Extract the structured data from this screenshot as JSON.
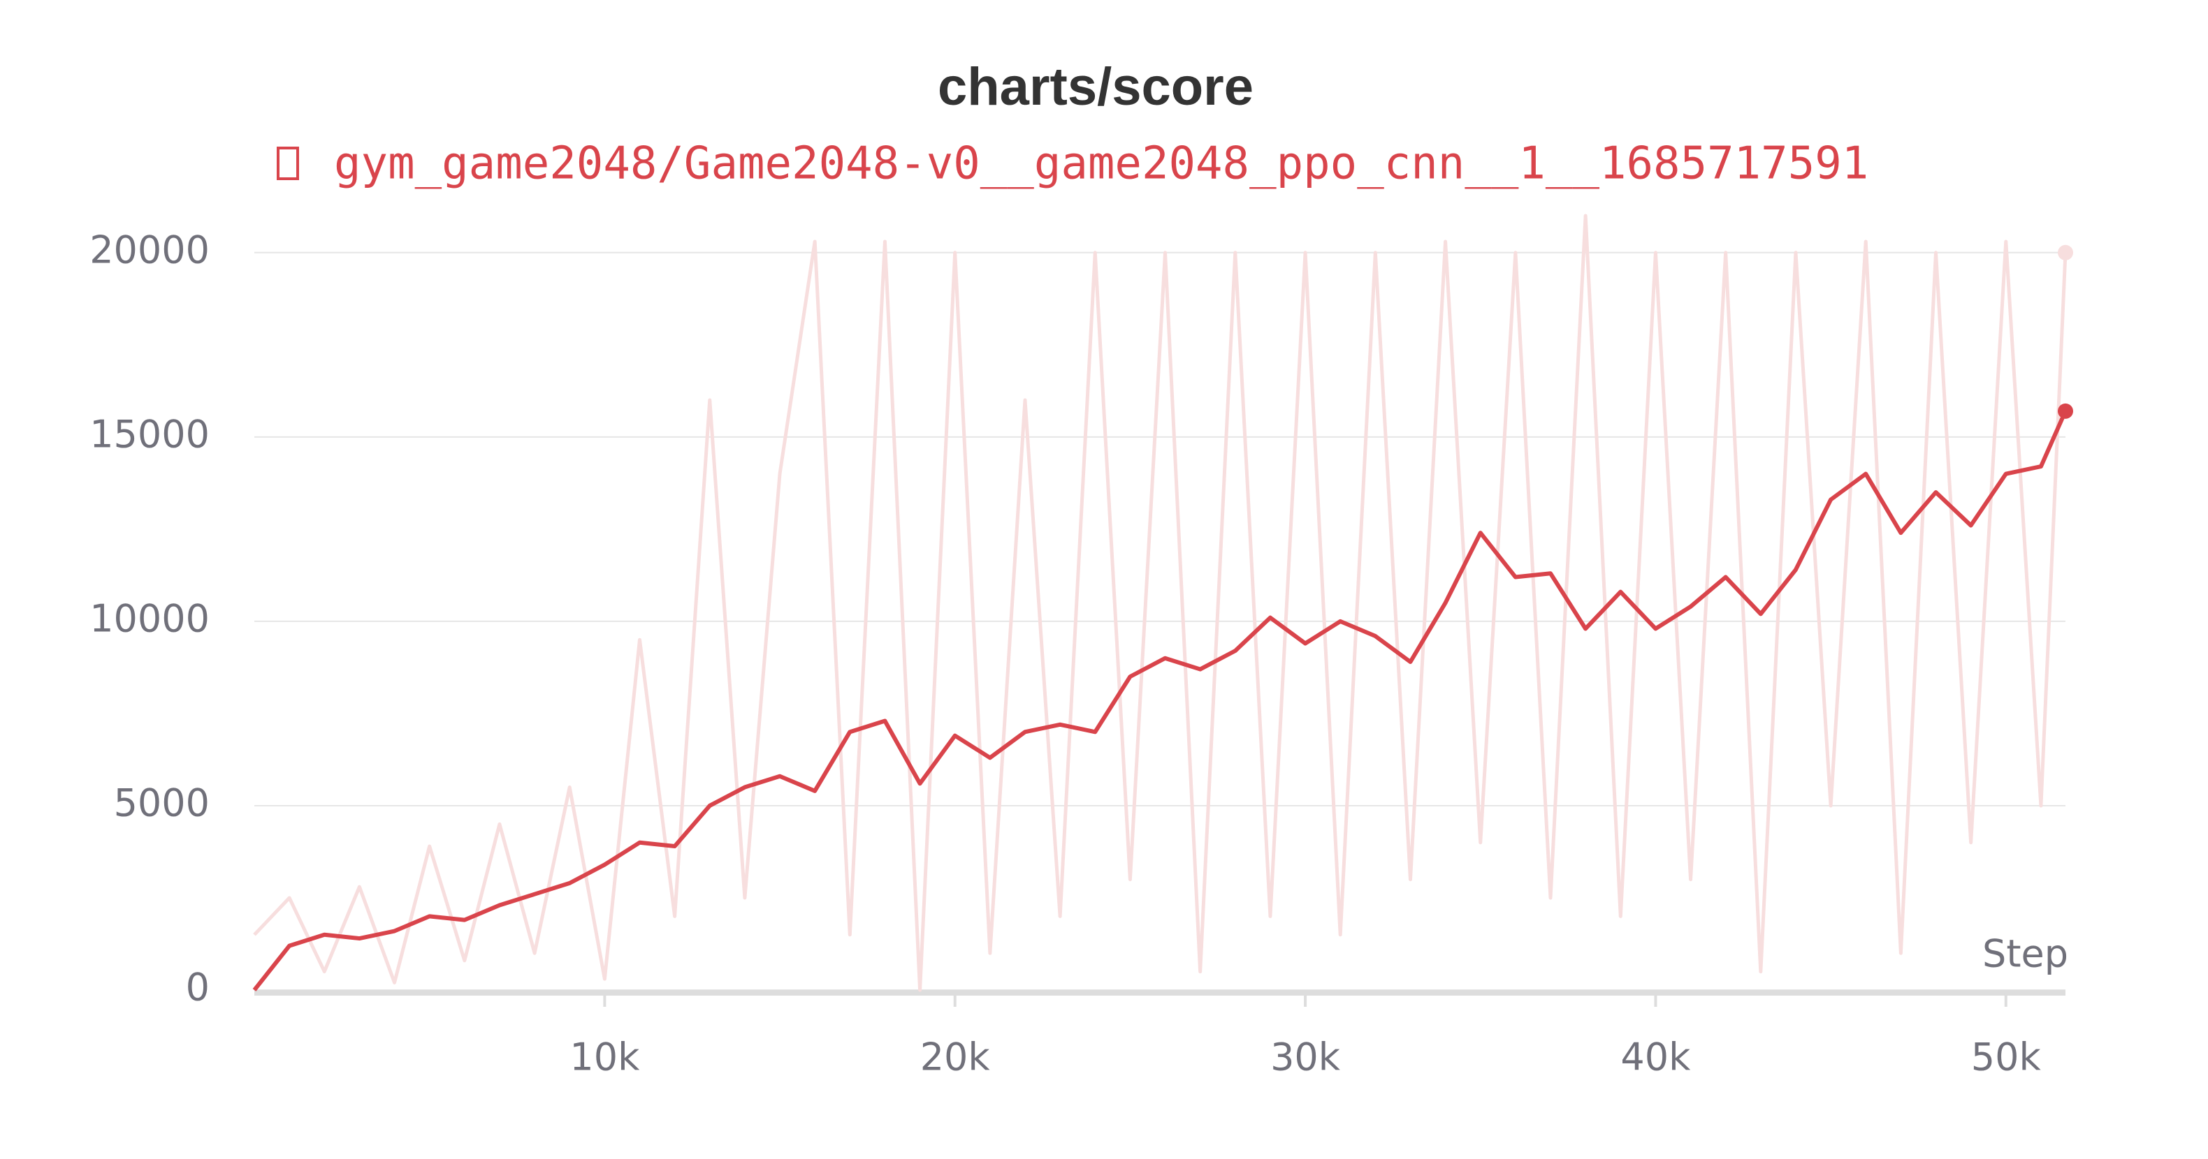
{
  "chart_data": {
    "type": "line",
    "title": "charts/score",
    "xlabel": "Step",
    "x": [
      0,
      1000,
      2000,
      3000,
      4000,
      5000,
      6000,
      7000,
      8000,
      9000,
      10000,
      11000,
      12000,
      13000,
      14000,
      15000,
      16000,
      17000,
      18000,
      19000,
      20000,
      21000,
      22000,
      23000,
      24000,
      25000,
      26000,
      27000,
      28000,
      29000,
      30000,
      31000,
      32000,
      33000,
      34000,
      35000,
      36000,
      37000,
      38000,
      39000,
      40000,
      41000,
      42000,
      43000,
      44000,
      45000,
      46000,
      47000,
      48000,
      49000,
      50000,
      51000,
      51700
    ],
    "series": [
      {
        "name": "gym_game2048/Game2048-v0__game2048_ppo_cnn__1__1685717591",
        "color": "#d9444b",
        "raw_color": "#f7dede",
        "values": [
          0,
          1200,
          1500,
          1400,
          1600,
          2000,
          1900,
          2300,
          2600,
          2900,
          3400,
          4000,
          3900,
          5000,
          5500,
          5800,
          5400,
          7000,
          7300,
          5600,
          6900,
          6300,
          7000,
          7200,
          7000,
          8500,
          9000,
          8700,
          9200,
          10100,
          9400,
          10000,
          9600,
          8900,
          10500,
          12400,
          11200,
          11300,
          9800,
          10800,
          9800,
          10400,
          11200,
          10200,
          11400,
          13300,
          14000,
          12400,
          13500,
          12600,
          14000,
          14200,
          15700
        ],
        "raw_values": [
          1500,
          2500,
          500,
          2800,
          200,
          3900,
          800,
          4500,
          1000,
          5500,
          300,
          9500,
          2000,
          16000,
          2500,
          14000,
          20300,
          1500,
          20300,
          0,
          20000,
          1000,
          16000,
          2000,
          20000,
          3000,
          20000,
          500,
          20000,
          2000,
          20000,
          1500,
          20000,
          3000,
          20300,
          4000,
          20000,
          2500,
          21000,
          2000,
          20000,
          3000,
          20000,
          500,
          20000,
          5000,
          20300,
          1000,
          20000,
          4000,
          20300,
          5000,
          20000
        ]
      }
    ],
    "xlim": [
      0,
      51700
    ],
    "ylim": [
      0,
      21000
    ],
    "xticks": [
      {
        "value": 10000,
        "label": "10k"
      },
      {
        "value": 20000,
        "label": "20k"
      },
      {
        "value": 30000,
        "label": "30k"
      },
      {
        "value": 40000,
        "label": "40k"
      },
      {
        "value": 50000,
        "label": "50k"
      }
    ],
    "yticks": [
      0,
      5000,
      10000,
      15000,
      20000
    ],
    "grid": true
  }
}
